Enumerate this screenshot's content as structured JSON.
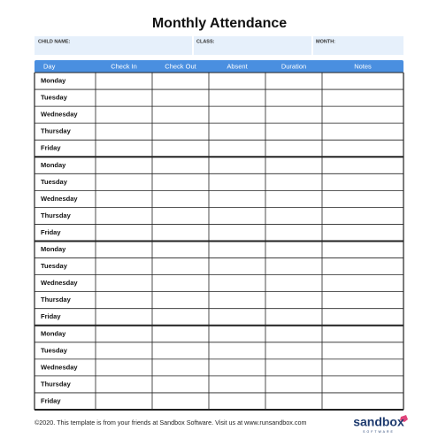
{
  "header": {
    "title": "Monthly Attendance"
  },
  "info": {
    "fields": [
      "CHILD NAME:",
      "CLASS:",
      "MONTH:"
    ]
  },
  "table": {
    "columns": [
      "Day",
      "Check In",
      "Check Out",
      "Absent",
      "Duration",
      "Notes"
    ],
    "weeks": [
      [
        "Monday",
        "Tuesday",
        "Wednesday",
        "Thursday",
        "Friday"
      ],
      [
        "Monday",
        "Tuesday",
        "Wednesday",
        "Thursday",
        "Friday"
      ],
      [
        "Monday",
        "Tuesday",
        "Wednesday",
        "Thursday",
        "Friday"
      ],
      [
        "Monday",
        "Tuesday",
        "Wednesday",
        "Thursday",
        "Friday"
      ]
    ]
  },
  "footer": {
    "text": "©2020. This template is from your friends at Sandbox Software. Visit us at www.runsandbox.com"
  },
  "logo": {
    "name": "sandbox",
    "tagline": "SOFTWARE"
  }
}
